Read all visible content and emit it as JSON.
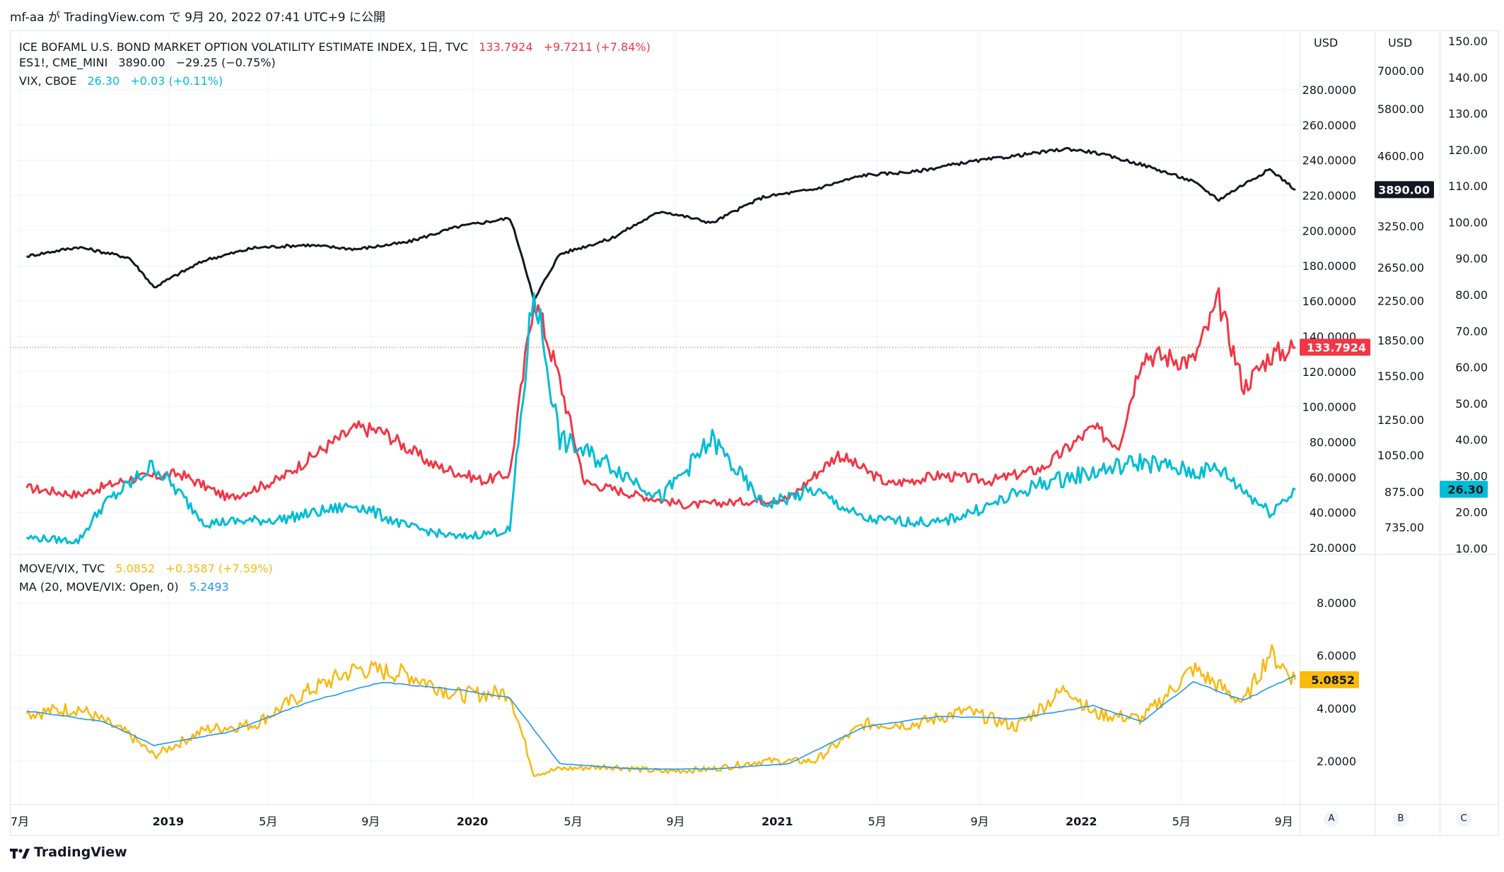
{
  "header": {
    "text": "mf-aa が TradingView.com で 9月 20, 2022 07:41 UTC+9 に公開"
  },
  "legend_top": {
    "move": {
      "name": "ICE BOFAML U.S. BOND MARKET OPTION VOLATILITY ESTIMATE INDEX, 1日, TVC",
      "value": "133.7924",
      "change": "+9.7211 (+7.84%)",
      "color": "#f23645"
    },
    "es": {
      "name": "ES1!, CME_MINI",
      "value": "3890.00",
      "change": "−29.25 (−0.75%)",
      "color": "#131722"
    },
    "vix": {
      "name": "VIX, CBOE",
      "value": "26.30",
      "change": "+0.03 (+0.11%)",
      "color": "#00bcd4"
    }
  },
  "legend_bottom": {
    "ratio": {
      "name": "MOVE/VIX, TVC",
      "value": "5.0852",
      "change": "+0.3587 (+7.59%)",
      "color": "#f9b90d"
    },
    "ma": {
      "name": "MA (20, MOVE/VIX: Open, 0)",
      "value": "5.2493",
      "color": "#2196f3"
    }
  },
  "axes": {
    "a_unit": "USD",
    "b_unit": "USD",
    "a_ticks": [
      "280.0000",
      "260.0000",
      "240.0000",
      "220.0000",
      "200.0000",
      "180.0000",
      "160.0000",
      "140.0000",
      "120.0000",
      "100.0000",
      "80.0000",
      "60.0000",
      "40.0000",
      "20.0000"
    ],
    "b_ticks": [
      "7000.00",
      "5800.00",
      "4600.00",
      "3250.00",
      "2650.00",
      "2250.00",
      "1850.00",
      "1550.00",
      "1250.00",
      "1050.00",
      "875.00",
      "735.00"
    ],
    "c_ticks": [
      "150.00",
      "140.00",
      "130.00",
      "120.00",
      "110.00",
      "100.00",
      "90.00",
      "80.00",
      "70.00",
      "60.00",
      "50.00",
      "40.00",
      "30.00",
      "20.00",
      "10.00"
    ],
    "lower_ticks": [
      "8.0000",
      "6.0000",
      "4.0000",
      "2.0000"
    ],
    "x_ticks": [
      "7月",
      "2019",
      "5月",
      "9月",
      "2020",
      "5月",
      "9月",
      "2021",
      "5月",
      "9月",
      "2022",
      "5月",
      "9月"
    ],
    "scale_buttons": [
      "A",
      "B",
      "C"
    ]
  },
  "last_labels": {
    "es": "3890.00",
    "move": "133.7924",
    "vix": "26.30",
    "ratio": "5.0852"
  },
  "footer": {
    "brand": "TradingView"
  },
  "chart_data": [
    {
      "type": "line",
      "x_range": [
        "2018-07",
        "2022-09"
      ],
      "series": [
        {
          "name": "ICE BOFAML U.S. BOND MARKET OPTION VOLATILITY ESTIMATE INDEX",
          "color": "#f23645",
          "axis": "A",
          "x": [
            "2018-07",
            "2018-09",
            "2018-11",
            "2019-01",
            "2019-03",
            "2019-05",
            "2019-07",
            "2019-08",
            "2019-09",
            "2019-11",
            "2020-01",
            "2020-02",
            "2020-03",
            "2020-04",
            "2020-05",
            "2020-07",
            "2020-09",
            "2020-11",
            "2021-01",
            "2021-03",
            "2021-05",
            "2021-07",
            "2021-09",
            "2021-11",
            "2022-01",
            "2022-02",
            "2022-03",
            "2022-05",
            "2022-06",
            "2022-07",
            "2022-08",
            "2022-09"
          ],
          "values": [
            54,
            50,
            59,
            62,
            48,
            59,
            79,
            88,
            86,
            67,
            58,
            62,
            163,
            115,
            57,
            50,
            44,
            46,
            48,
            73,
            56,
            61,
            58,
            65,
            88,
            78,
            130,
            126,
            160,
            111,
            129,
            133.79
          ]
        },
        {
          "name": "ES1!, CME_MINI",
          "color": "#131722",
          "axis": "B",
          "x": [
            "2018-07",
            "2018-09",
            "2018-11",
            "2018-12",
            "2019-02",
            "2019-04",
            "2019-06",
            "2019-08",
            "2019-10",
            "2019-12",
            "2020-02",
            "2020-03",
            "2020-04",
            "2020-06",
            "2020-08",
            "2020-10",
            "2020-12",
            "2021-02",
            "2021-04",
            "2021-06",
            "2021-08",
            "2021-10",
            "2021-12",
            "2022-01",
            "2022-03",
            "2022-05",
            "2022-06",
            "2022-08",
            "2022-09"
          ],
          "values": [
            2800,
            2930,
            2780,
            2400,
            2750,
            2920,
            2960,
            2900,
            3000,
            3240,
            3380,
            2240,
            2830,
            3050,
            3500,
            3300,
            3750,
            3900,
            4180,
            4250,
            4450,
            4600,
            4760,
            4680,
            4400,
            4050,
            3700,
            4300,
            3890
          ]
        },
        {
          "name": "VIX, CBOE",
          "color": "#00bcd4",
          "axis": "C",
          "x": [
            "2018-07",
            "2018-09",
            "2018-10",
            "2018-12",
            "2019-02",
            "2019-05",
            "2019-08",
            "2019-10",
            "2019-12",
            "2020-02",
            "2020-03",
            "2020-04",
            "2020-06",
            "2020-08",
            "2020-10",
            "2020-12",
            "2021-02",
            "2021-04",
            "2021-07",
            "2021-09",
            "2021-11",
            "2022-01",
            "2022-03",
            "2022-05",
            "2022-06",
            "2022-08",
            "2022-09"
          ],
          "values": [
            13,
            12,
            22,
            33,
            17,
            18,
            22,
            16,
            13,
            15,
            82,
            40,
            33,
            24,
            40,
            22,
            26,
            18,
            17,
            22,
            28,
            31,
            34,
            31,
            32,
            20,
            26.3
          ]
        }
      ]
    },
    {
      "type": "line",
      "x_range": [
        "2018-07",
        "2022-09"
      ],
      "ylim": [
        0,
        9
      ],
      "series": [
        {
          "name": "MOVE/VIX, TVC",
          "color": "#f9b90d",
          "x": [
            "2018-07",
            "2018-09",
            "2018-11",
            "2018-12",
            "2019-02",
            "2019-04",
            "2019-06",
            "2019-08",
            "2019-10",
            "2019-12",
            "2020-02",
            "2020-03",
            "2020-04",
            "2020-06",
            "2020-08",
            "2020-10",
            "2020-12",
            "2021-02",
            "2021-04",
            "2021-06",
            "2021-08",
            "2021-10",
            "2021-12",
            "2022-01",
            "2022-03",
            "2022-05",
            "2022-07",
            "2022-08",
            "2022-09"
          ],
          "values": [
            3.8,
            4.0,
            3.0,
            2.2,
            3.2,
            3.4,
            4.6,
            5.5,
            5.3,
            4.5,
            4.6,
            1.5,
            1.7,
            1.8,
            1.6,
            1.7,
            2.0,
            2.0,
            3.4,
            3.4,
            3.9,
            3.3,
            4.8,
            3.8,
            3.6,
            5.5,
            4.2,
            6.1,
            5.0852
          ]
        },
        {
          "name": "MA (20, MOVE/VIX: Open, 0)",
          "color": "#2196f3",
          "x": [
            "2018-07",
            "2018-10",
            "2018-12",
            "2019-03",
            "2019-06",
            "2019-09",
            "2019-12",
            "2020-02",
            "2020-04",
            "2020-07",
            "2020-10",
            "2021-01",
            "2021-04",
            "2021-07",
            "2021-10",
            "2022-01",
            "2022-03",
            "2022-05",
            "2022-07",
            "2022-09"
          ],
          "values": [
            3.9,
            3.5,
            2.6,
            3.1,
            4.2,
            5.0,
            4.7,
            4.4,
            1.9,
            1.7,
            1.7,
            1.9,
            3.3,
            3.7,
            3.6,
            4.1,
            3.5,
            5.0,
            4.3,
            5.2493
          ]
        }
      ]
    }
  ]
}
